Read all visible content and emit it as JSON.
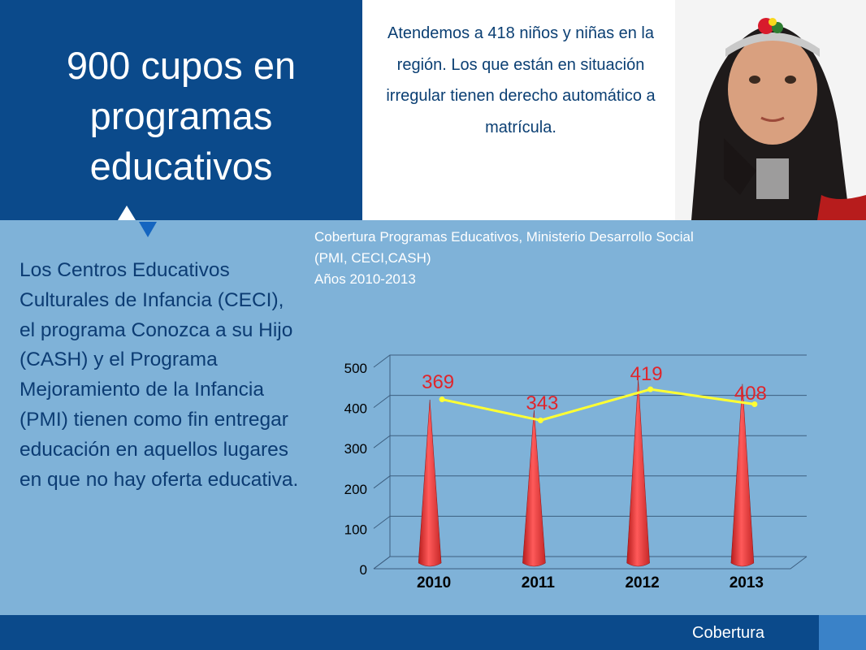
{
  "title": "900 cupos en programas educativos",
  "blurb": "Atendemos a 418 niños y niñas en la región. Los que están en situación irregular tienen derecho automático a matrícula.",
  "body": "Los Centros Educativos Culturales de Infancia (CECI), el programa Conozca a su Hijo (CASH) y el Programa Mejoramiento de la Infancia (PMI) tienen como fin entregar educación en aquellos lugares en que no hay oferta educativa.",
  "caption": {
    "line1": "Cobertura Programas Educativos, Ministerio Desarrollo Social",
    "line2": "(PMI, CECI,CASH)",
    "line3": "Años 2010-2013"
  },
  "footer": {
    "label": "Cobertura"
  },
  "colors": {
    "navy": "#0b4a8b",
    "background": "#7fb2d8",
    "cone": "#e53935",
    "line": "#ffff33",
    "data_label": "#e0252b"
  },
  "chart_data": {
    "type": "bar",
    "bar_shape": "cone",
    "categories": [
      "2010",
      "2011",
      "2012",
      "2013"
    ],
    "values": [
      369,
      343,
      419,
      408
    ],
    "data_labels": [
      "369",
      "343",
      "419",
      "408"
    ],
    "trend_line": [
      390,
      338,
      415,
      378
    ],
    "y_ticks": [
      "0",
      "100",
      "200",
      "300",
      "400",
      "500"
    ],
    "ylim": [
      0,
      500
    ],
    "grid": true
  }
}
